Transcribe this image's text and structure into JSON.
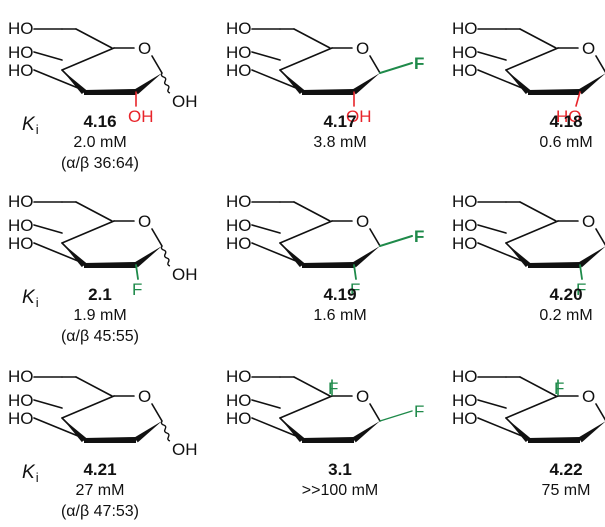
{
  "ring_labels": {
    "oxygen": "O",
    "hydroxyl": "HO",
    "hydroxyl_right": "OH",
    "fluorine": "F"
  },
  "ki_label": {
    "symbol": "K",
    "subscript": "i"
  },
  "colors": {
    "hydroxyl_highlight": "#e8242a",
    "fluorine": "#1f8a4a",
    "ink": "#111111"
  },
  "rows": [
    {
      "ki_visible": true,
      "compounds": [
        {
          "id": "4.16",
          "ki": "2.0 mM",
          "ratio": "(α/β 36:64)",
          "c1": "anomeric-mix",
          "c2": "oh-red",
          "c5_f": false
        },
        {
          "id": "4.17",
          "ki": "3.8 mM",
          "ratio": "",
          "c1": "f-beta",
          "c2": "oh-red",
          "c5_f": false
        },
        {
          "id": "4.18",
          "ki": "0.6 mM",
          "ratio": "",
          "c1": "f-beta",
          "c2": "ho-red-axial",
          "c5_f": false
        }
      ]
    },
    {
      "ki_visible": true,
      "compounds": [
        {
          "id": "2.1",
          "ki": "1.9 mM",
          "ratio": "(α/β 45:55)",
          "c1": "anomeric-mix",
          "c2": "f-green",
          "c5_f": false
        },
        {
          "id": "4.19",
          "ki": "1.6 mM",
          "ratio": "",
          "c1": "f-beta",
          "c2": "f-green",
          "c5_f": false
        },
        {
          "id": "4.20",
          "ki": "0.2 mM",
          "ratio": "",
          "c1": "f-beta",
          "c2": "f-green",
          "c5_f": false
        }
      ]
    },
    {
      "ki_visible": true,
      "compounds": [
        {
          "id": "4.21",
          "ki": "27 mM",
          "ratio": "(α/β 47:53)",
          "c1": "anomeric-mix",
          "c2": "none",
          "c5_f": false
        },
        {
          "id": "3.1",
          "ki": ">>100 mM",
          "ratio": "",
          "c1": "f-beta-thin",
          "c2": "none",
          "c5_f": true
        },
        {
          "id": "4.22",
          "ki": "75 mM",
          "ratio": "",
          "c1": "f-beta",
          "c2": "none",
          "c5_f": true
        }
      ]
    }
  ]
}
